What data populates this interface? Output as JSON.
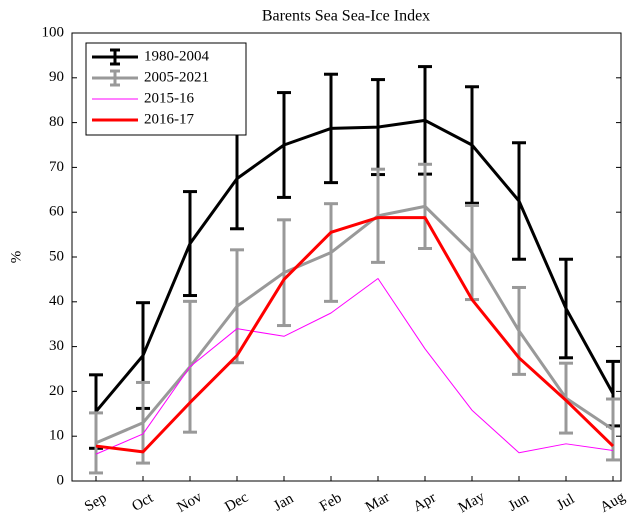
{
  "chart_data": {
    "type": "line",
    "title": "Barents Sea Sea-Ice Index",
    "y_label": "%",
    "categories": [
      "Sep",
      "Oct",
      "Nov",
      "Dec",
      "Jan",
      "Feb",
      "Mar",
      "Apr",
      "May",
      "Jun",
      "Jul",
      "Aug"
    ],
    "ylim": [
      0,
      100
    ],
    "yticks": [
      0,
      10,
      20,
      30,
      40,
      50,
      60,
      70,
      80,
      90,
      100
    ],
    "legend": "upper-left",
    "series": [
      {
        "name": "1980-2004",
        "color": "#000000",
        "values": [
          15.5,
          28,
          53,
          67.5,
          75,
          78.7,
          79,
          80.5,
          75,
          62.5,
          38.5,
          19.5
        ],
        "errors": [
          8.2,
          11.8,
          11.6,
          11.2,
          11.7,
          12.1,
          10.6,
          12,
          13,
          13,
          11,
          7.2
        ]
      },
      {
        "name": "2005-2021",
        "color": "#999999",
        "values": [
          8.5,
          13,
          25.5,
          39,
          46.5,
          51,
          59.2,
          61.3,
          51,
          33.5,
          18.5,
          11.5
        ],
        "errors": [
          6.7,
          9,
          14.6,
          12.6,
          11.8,
          10.9,
          10.4,
          9.4,
          10.5,
          9.7,
          7.8,
          6.8
        ]
      },
      {
        "name": "2015-16",
        "color": "#ff00ff",
        "values": [
          6,
          10.5,
          25.5,
          34,
          32.3,
          37.5,
          45.2,
          29.5,
          15.8,
          6.3,
          8.3,
          6.8
        ]
      },
      {
        "name": "2016-17",
        "color": "#ff0000",
        "values": [
          7.8,
          6.5,
          17.5,
          28,
          45,
          55.5,
          58.8,
          58.8,
          40.5,
          27.5,
          18,
          7.8
        ]
      }
    ]
  }
}
